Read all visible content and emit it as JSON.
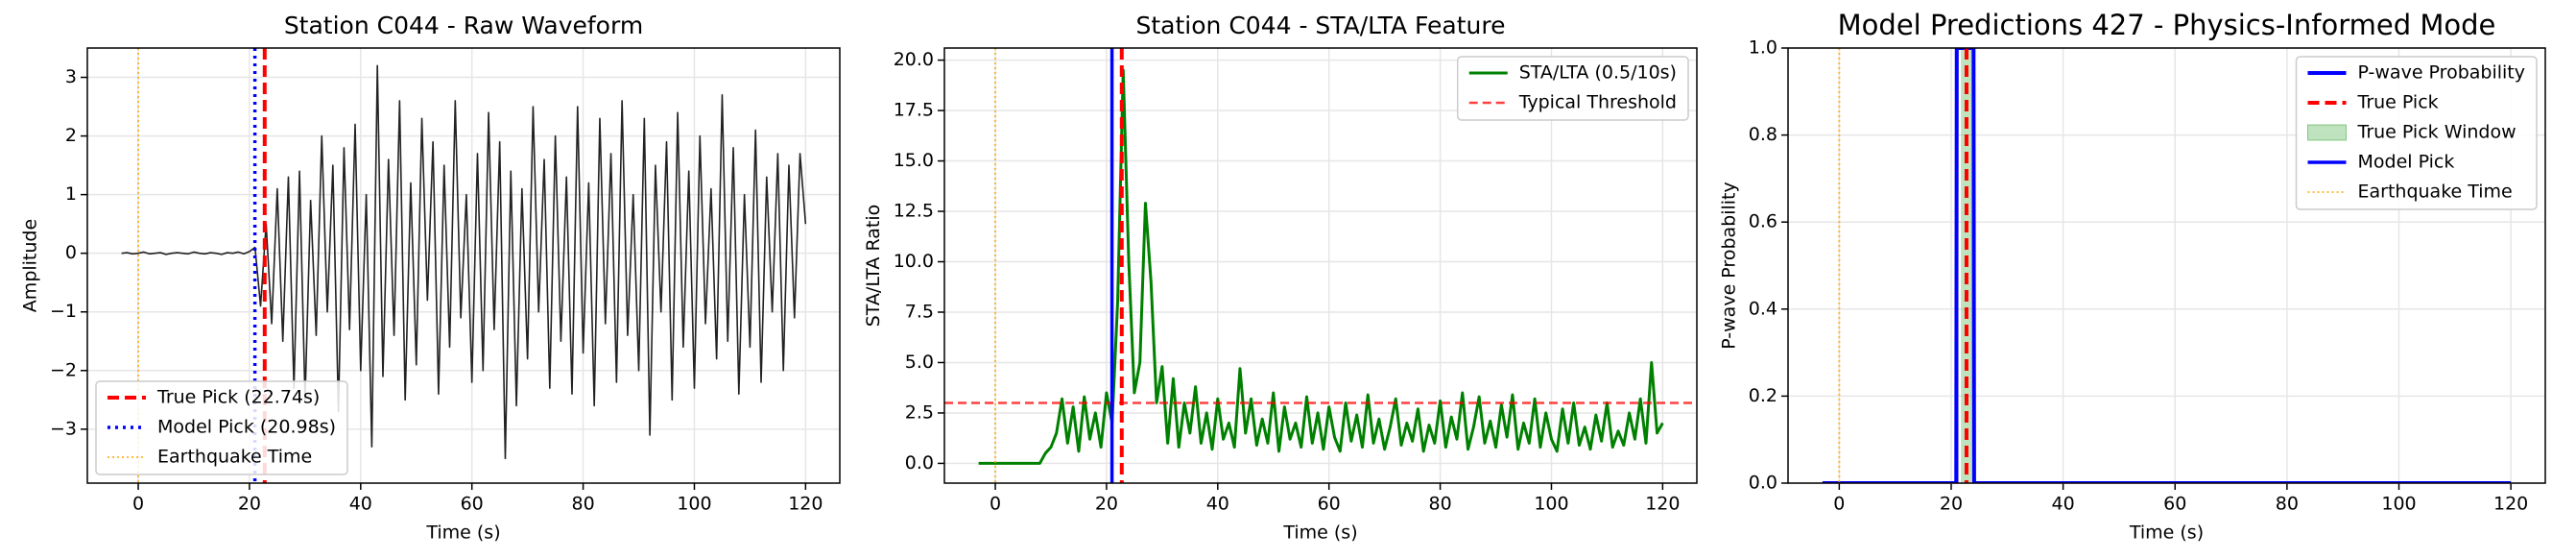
{
  "chart_data": [
    {
      "type": "line",
      "title": "Station C044 - Raw Waveform",
      "xlabel": "Time (s)",
      "ylabel": "Amplitude",
      "x": [
        -3,
        -2,
        -1,
        0,
        1,
        2,
        3,
        4,
        5,
        6,
        7,
        8,
        9,
        10,
        11,
        12,
        13,
        14,
        15,
        16,
        17,
        18,
        19,
        20,
        21,
        22,
        23,
        24,
        25,
        26,
        27,
        28,
        29,
        30,
        31,
        32,
        33,
        34,
        35,
        36,
        37,
        38,
        39,
        40,
        41,
        42,
        43,
        44,
        45,
        46,
        47,
        48,
        49,
        50,
        51,
        52,
        53,
        54,
        55,
        56,
        57,
        58,
        59,
        60,
        61,
        62,
        63,
        64,
        65,
        66,
        67,
        68,
        69,
        70,
        71,
        72,
        73,
        74,
        75,
        76,
        77,
        78,
        79,
        80,
        81,
        82,
        83,
        84,
        85,
        86,
        87,
        88,
        89,
        90,
        91,
        92,
        93,
        94,
        95,
        96,
        97,
        98,
        99,
        100,
        101,
        102,
        103,
        104,
        105,
        106,
        107,
        108,
        109,
        110,
        111,
        112,
        113,
        114,
        115,
        116,
        117,
        118,
        119,
        120
      ],
      "series": [
        {
          "name": null,
          "color": "#222222",
          "values": [
            0,
            0.01,
            -0.01,
            0,
            0.02,
            -0.01,
            0,
            0.01,
            -0.02,
            0,
            0.01,
            0,
            -0.01,
            0.02,
            0,
            -0.01,
            0.01,
            0,
            -0.02,
            0.01,
            0,
            0.02,
            -0.01,
            0.03,
            0.1,
            -0.9,
            0.5,
            -1.2,
            1.1,
            -1.5,
            1.3,
            -2.3,
            1.4,
            -2.5,
            0.9,
            -1.4,
            2.0,
            -1.0,
            1.5,
            -2.7,
            1.8,
            -1.3,
            2.2,
            -2.0,
            1.0,
            -3.3,
            3.2,
            -2.1,
            1.6,
            -1.4,
            2.6,
            -2.5,
            1.2,
            -1.9,
            2.3,
            -0.8,
            1.9,
            -2.4,
            1.5,
            -1.6,
            2.6,
            -1.1,
            1.0,
            -2.2,
            1.7,
            -2.0,
            2.4,
            -1.3,
            1.9,
            -3.5,
            1.4,
            -2.6,
            1.1,
            -1.8,
            2.5,
            -1.0,
            1.6,
            -2.3,
            2.0,
            -1.5,
            1.3,
            -2.4,
            2.5,
            -1.7,
            1.2,
            -2.6,
            2.3,
            -1.2,
            1.7,
            -2.2,
            2.6,
            -1.4,
            1.0,
            -2.0,
            2.3,
            -3.1,
            1.5,
            -1.0,
            1.9,
            -2.5,
            2.4,
            -1.6,
            1.4,
            -2.3,
            2.0,
            -1.2,
            1.1,
            -1.8,
            2.7,
            -1.5,
            1.8,
            -2.4,
            1.0,
            -1.6,
            2.1,
            -2.2,
            1.3,
            -1.0,
            1.7,
            -2.0,
            1.5,
            -1.1,
            1.7,
            0.5
          ]
        }
      ],
      "overlays": [
        {
          "kind": "vline",
          "name": "True Pick (22.74s)",
          "x": 22.74,
          "color": "#ff0000",
          "style": "dashed"
        },
        {
          "kind": "vline",
          "name": "Model Pick (20.98s)",
          "x": 20.98,
          "color": "#0000ff",
          "style": "dotted"
        },
        {
          "kind": "vline",
          "name": "Earthquake Time",
          "x": 0,
          "color": "#ffa500",
          "style": "fine-dotted"
        }
      ],
      "xlim": [
        -9.15,
        126.15
      ],
      "xticks": [
        0,
        20,
        40,
        60,
        80,
        100,
        120
      ],
      "ylim": [
        -3.92,
        3.5
      ],
      "yticks": [
        {
          "value": -3,
          "label": "−3"
        },
        {
          "value": -2,
          "label": "−2"
        },
        {
          "value": -1,
          "label": "−1"
        },
        0,
        1,
        2,
        3
      ],
      "grid": true,
      "legend": "lower left"
    },
    {
      "type": "line",
      "title": "Station C044 - STA/LTA Feature",
      "xlabel": "Time (s)",
      "ylabel": "STA/LTA Ratio",
      "x": [
        -3,
        -2,
        -1,
        0,
        1,
        2,
        3,
        4,
        5,
        6,
        7,
        8,
        9,
        10,
        11,
        12,
        13,
        14,
        15,
        16,
        17,
        18,
        19,
        20,
        21,
        22,
        23,
        24,
        25,
        26,
        27,
        28,
        29,
        30,
        31,
        32,
        33,
        34,
        35,
        36,
        37,
        38,
        39,
        40,
        41,
        42,
        43,
        44,
        45,
        46,
        47,
        48,
        49,
        50,
        51,
        52,
        53,
        54,
        55,
        56,
        57,
        58,
        59,
        60,
        61,
        62,
        63,
        64,
        65,
        66,
        67,
        68,
        69,
        70,
        71,
        72,
        73,
        74,
        75,
        76,
        77,
        78,
        79,
        80,
        81,
        82,
        83,
        84,
        85,
        86,
        87,
        88,
        89,
        90,
        91,
        92,
        93,
        94,
        95,
        96,
        97,
        98,
        99,
        100,
        101,
        102,
        103,
        104,
        105,
        106,
        107,
        108,
        109,
        110,
        111,
        112,
        113,
        114,
        115,
        116,
        117,
        118,
        119,
        120
      ],
      "series": [
        {
          "name": "STA/LTA (0.5/10s)",
          "color": "#008000",
          "values": [
            0,
            0,
            0,
            0,
            0,
            0,
            0,
            0,
            0,
            0,
            0,
            0,
            0.5,
            0.8,
            1.5,
            3.2,
            1.0,
            2.8,
            0.6,
            3.3,
            1.2,
            2.5,
            0.8,
            3.5,
            2.0,
            8.0,
            19.5,
            10.0,
            3.5,
            5.0,
            12.9,
            9.0,
            3.0,
            4.8,
            1.0,
            4.2,
            0.8,
            3.0,
            1.5,
            3.8,
            1.0,
            2.5,
            0.7,
            3.2,
            1.2,
            2.0,
            0.8,
            4.7,
            1.5,
            3.2,
            0.9,
            2.2,
            1.0,
            3.5,
            0.6,
            2.8,
            1.2,
            2.0,
            0.8,
            3.3,
            1.0,
            2.5,
            0.7,
            2.8,
            1.3,
            0.6,
            3.0,
            1.1,
            2.4,
            0.8,
            3.4,
            1.0,
            2.2,
            0.7,
            1.8,
            3.2,
            0.9,
            2.0,
            1.1,
            2.7,
            0.6,
            1.9,
            1.0,
            3.1,
            0.8,
            2.3,
            1.2,
            3.5,
            0.7,
            1.8,
            3.3,
            1.0,
            2.1,
            0.8,
            2.9,
            1.3,
            3.4,
            0.7,
            2.0,
            1.0,
            3.2,
            0.8,
            2.5,
            1.2,
            0.6,
            2.7,
            1.0,
            3.0,
            0.9,
            1.8,
            0.7,
            2.4,
            1.1,
            3.0,
            0.8,
            1.6,
            0.9,
            2.5,
            1.2,
            3.2,
            1.0,
            5.0,
            1.5,
            2.0
          ]
        }
      ],
      "overlays": [
        {
          "kind": "hline",
          "name": "Typical Threshold",
          "y": 3.0,
          "color": "#ff0000",
          "style": "thin-dashed"
        },
        {
          "kind": "vline",
          "x": 20.98,
          "color": "#0000ff",
          "style": "solid"
        },
        {
          "kind": "vline",
          "x": 22.74,
          "color": "#ff0000",
          "style": "dashed"
        },
        {
          "kind": "vline",
          "x": 0,
          "color": "#ffa500",
          "style": "fine-dotted"
        }
      ],
      "xlim": [
        -9.15,
        126.15
      ],
      "xticks": [
        0,
        20,
        40,
        60,
        80,
        100,
        120
      ],
      "ylim": [
        -0.98,
        20.6
      ],
      "yticks": [
        {
          "value": 0,
          "label": "0.0"
        },
        2.5,
        {
          "value": 5,
          "label": "5.0"
        },
        7.5,
        {
          "value": 10,
          "label": "10.0"
        },
        12.5,
        {
          "value": 15,
          "label": "15.0"
        },
        17.5,
        {
          "value": 20,
          "label": "20.0"
        }
      ],
      "grid": true,
      "legend": "upper right"
    },
    {
      "type": "line",
      "title": "Model Predictions 427 - Physics-Informed Mode",
      "xlabel": "Time (s)",
      "ylabel": "P-wave Probability",
      "x": [
        -3,
        20.9,
        21.0,
        24.0,
        24.1,
        120
      ],
      "series": [
        {
          "name": "P-wave Probability",
          "color": "#0000ff",
          "values": [
            0,
            0,
            1,
            1,
            0,
            0
          ]
        }
      ],
      "overlays": [
        {
          "kind": "vline",
          "name": "True Pick",
          "x": 22.74,
          "color": "#ff0000",
          "style": "dashed"
        },
        {
          "kind": "span",
          "name": "True Pick Window",
          "x": [
            21.74,
            23.74
          ],
          "color": "#2ca02c"
        },
        {
          "kind": "vline",
          "name": "Model Pick",
          "x": 20.98,
          "color": "#0000ff",
          "style": "solid"
        },
        {
          "kind": "vline",
          "name": "Earthquake Time",
          "x": 0,
          "color": "#ffa500",
          "style": "fine-dotted"
        }
      ],
      "xlim": [
        -9.15,
        126.15
      ],
      "xticks": [
        0,
        20,
        40,
        60,
        80,
        100,
        120
      ],
      "ylim": [
        0,
        1
      ],
      "yticks": [
        {
          "value": 0,
          "label": "0.0"
        },
        0.2,
        0.4,
        0.6,
        0.8,
        {
          "value": 1,
          "label": "1.0"
        }
      ],
      "grid": true,
      "legend": "upper right"
    }
  ]
}
